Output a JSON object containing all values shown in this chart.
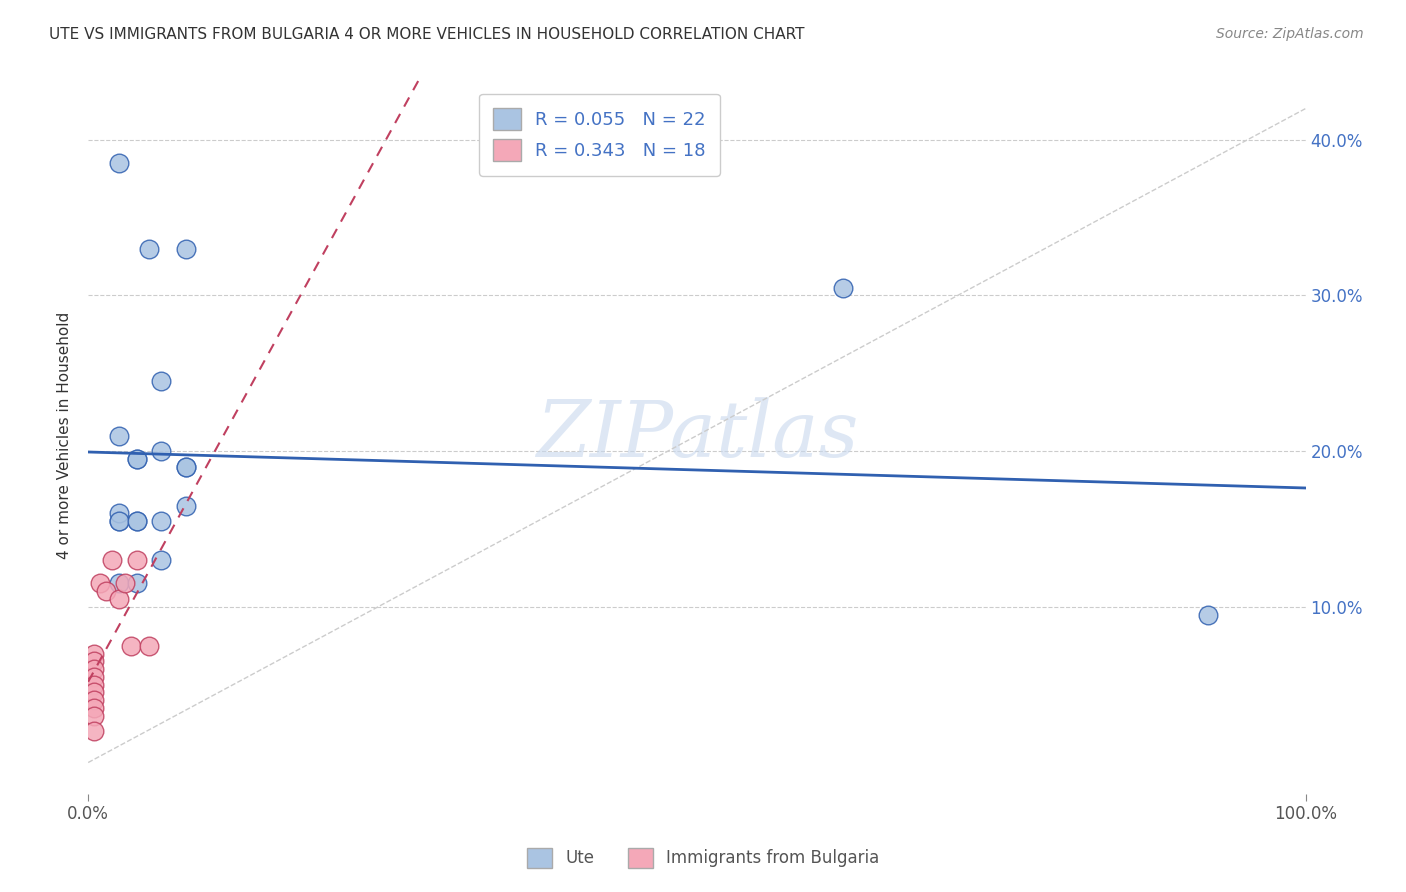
{
  "title": "UTE VS IMMIGRANTS FROM BULGARIA 4 OR MORE VEHICLES IN HOUSEHOLD CORRELATION CHART",
  "source": "Source: ZipAtlas.com",
  "ylabel": "4 or more Vehicles in Household",
  "legend_label1": "Ute",
  "legend_label2": "Immigrants from Bulgaria",
  "R1": 0.055,
  "N1": 22,
  "R2": 0.343,
  "N2": 18,
  "xlim": [
    0.0,
    1.0
  ],
  "ylim": [
    -0.02,
    0.44
  ],
  "xtick_positions": [
    0.0,
    1.0
  ],
  "xtick_labels": [
    "0.0%",
    "100.0%"
  ],
  "ytick_positions": [
    0.1,
    0.2,
    0.3,
    0.4
  ],
  "ytick_labels": [
    "10.0%",
    "20.0%",
    "30.0%",
    "40.0%"
  ],
  "grid_yticks": [
    0.1,
    0.2,
    0.3,
    0.4
  ],
  "color_ute": "#aac4e2",
  "color_bulgaria": "#f4a8b8",
  "line_color_ute": "#3060b0",
  "line_color_bulgaria": "#c04060",
  "watermark": "ZIPatlas",
  "ute_x": [
    0.025,
    0.05,
    0.08,
    0.025,
    0.04,
    0.06,
    0.08,
    0.025,
    0.04,
    0.06,
    0.025,
    0.04,
    0.06,
    0.08,
    0.62,
    0.92,
    0.025,
    0.04,
    0.06,
    0.08,
    0.025,
    0.04
  ],
  "ute_y": [
    0.385,
    0.33,
    0.33,
    0.21,
    0.195,
    0.245,
    0.19,
    0.155,
    0.155,
    0.13,
    0.16,
    0.195,
    0.155,
    0.19,
    0.305,
    0.095,
    0.155,
    0.155,
    0.2,
    0.165,
    0.115,
    0.115
  ],
  "bulgaria_x": [
    0.005,
    0.005,
    0.005,
    0.005,
    0.005,
    0.005,
    0.005,
    0.005,
    0.005,
    0.005,
    0.01,
    0.015,
    0.02,
    0.025,
    0.03,
    0.035,
    0.04,
    0.05
  ],
  "bulgaria_y": [
    0.07,
    0.065,
    0.06,
    0.055,
    0.05,
    0.045,
    0.04,
    0.035,
    0.03,
    0.02,
    0.115,
    0.11,
    0.13,
    0.105,
    0.115,
    0.075,
    0.13,
    0.075
  ],
  "background_color": "#ffffff",
  "grid_color": "#cccccc",
  "ref_line_color": "#cccccc"
}
